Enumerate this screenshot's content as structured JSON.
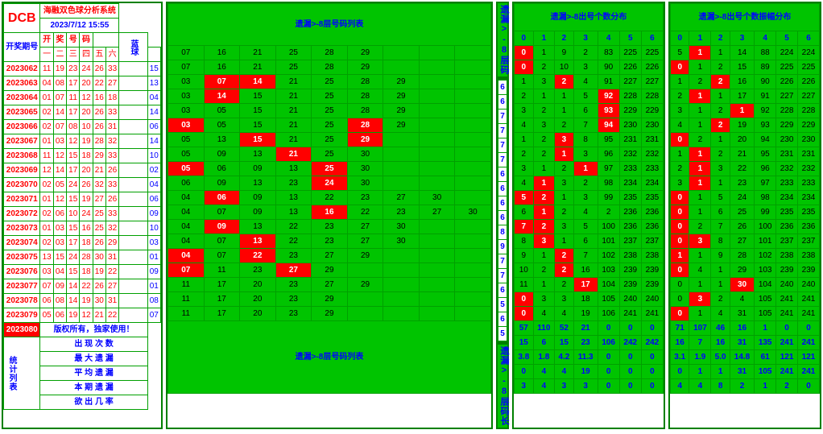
{
  "system_name": "海融双色球分析系统",
  "timestamp": "2023/7/12  15:55",
  "logo": "DCB",
  "col_group_labels": {
    "kai": "开",
    "jiang": "奖",
    "hao": "号",
    "ma": "码",
    "blue": "蓝球",
    "period": "开奖期号"
  },
  "num_cols": [
    "一",
    "二",
    "三",
    "四",
    "五",
    "六"
  ],
  "sections": {
    "center_title": "遗漏>-8层号码列表",
    "right1_title": "遗漏>-8出号个数分布",
    "right2_title": "遗漏>-8出号个数振幅分布",
    "bottom_title": "遗漏>-8层号码列表"
  },
  "col_headers_small": [
    "0",
    "1",
    "2",
    "3",
    "4",
    "5",
    "6"
  ],
  "vertical_labels": {
    "top": "遗漏>-8层码",
    "bottom": "遗漏>-8层码长"
  },
  "periods": [
    "2023062",
    "2023063",
    "2023064",
    "2023065",
    "2023066",
    "2023067",
    "2023068",
    "2023069",
    "2023070",
    "2023071",
    "2023072",
    "2023073",
    "2023074",
    "2023075",
    "2023076",
    "2023077",
    "2023078",
    "2023079",
    "2023080"
  ],
  "red_nums": [
    [
      "11",
      "19",
      "23",
      "24",
      "26",
      "33"
    ],
    [
      "04",
      "08",
      "17",
      "20",
      "22",
      "27"
    ],
    [
      "01",
      "07",
      "11",
      "12",
      "16",
      "18"
    ],
    [
      "02",
      "14",
      "17",
      "20",
      "26",
      "33"
    ],
    [
      "02",
      "07",
      "08",
      "10",
      "26",
      "31"
    ],
    [
      "01",
      "03",
      "12",
      "19",
      "28",
      "32"
    ],
    [
      "11",
      "12",
      "15",
      "18",
      "29",
      "33"
    ],
    [
      "12",
      "14",
      "17",
      "20",
      "21",
      "26"
    ],
    [
      "02",
      "05",
      "24",
      "26",
      "32",
      "33"
    ],
    [
      "01",
      "12",
      "15",
      "19",
      "27",
      "26"
    ],
    [
      "02",
      "06",
      "10",
      "24",
      "25",
      "33"
    ],
    [
      "01",
      "03",
      "15",
      "16",
      "25",
      "32"
    ],
    [
      "02",
      "03",
      "17",
      "18",
      "26",
      "29"
    ],
    [
      "13",
      "15",
      "24",
      "28",
      "30",
      "31"
    ],
    [
      "03",
      "04",
      "15",
      "18",
      "19",
      "22"
    ],
    [
      "07",
      "09",
      "14",
      "22",
      "26",
      "27"
    ],
    [
      "06",
      "08",
      "14",
      "19",
      "30",
      "31"
    ],
    [
      "05",
      "06",
      "19",
      "12",
      "21",
      "22"
    ]
  ],
  "blue_nums": [
    "15",
    "13",
    "04",
    "14",
    "06",
    "14",
    "10",
    "02",
    "04",
    "06",
    "09",
    "10",
    "03",
    "01",
    "09",
    "01",
    "08",
    "07"
  ],
  "copyright": "版权所有，独家使用！",
  "stat_labels": [
    "出 现 次 数",
    "最 大 遗 漏",
    "平 均 遗 漏",
    "本 期 遗 漏",
    "欲 出 几 率"
  ],
  "stat_vertical": "统计列表",
  "center_rows": [
    [
      "07",
      "16",
      "21",
      "25",
      "28",
      "29",
      "",
      "",
      ""
    ],
    [
      "07",
      "16",
      "21",
      "25",
      "28",
      "29",
      "",
      "",
      ""
    ],
    [
      "03",
      "07",
      "14",
      "21",
      "25",
      "28",
      "29",
      "",
      ""
    ],
    [
      "03",
      "14",
      "15",
      "21",
      "25",
      "28",
      "29",
      "",
      ""
    ],
    [
      "03",
      "05",
      "15",
      "21",
      "25",
      "28",
      "29",
      "",
      ""
    ],
    [
      "03",
      "05",
      "15",
      "21",
      "25",
      "28",
      "29",
      "",
      ""
    ],
    [
      "05",
      "13",
      "15",
      "21",
      "25",
      "29",
      "",
      "",
      ""
    ],
    [
      "05",
      "09",
      "13",
      "21",
      "25",
      "30",
      "",
      "",
      ""
    ],
    [
      "05",
      "06",
      "09",
      "13",
      "25",
      "30",
      "",
      "",
      ""
    ],
    [
      "06",
      "09",
      "13",
      "23",
      "24",
      "30",
      "",
      "",
      ""
    ],
    [
      "04",
      "06",
      "09",
      "13",
      "22",
      "23",
      "27",
      "30",
      ""
    ],
    [
      "04",
      "07",
      "09",
      "13",
      "16",
      "22",
      "23",
      "27",
      "30"
    ],
    [
      "04",
      "09",
      "13",
      "22",
      "23",
      "27",
      "30",
      "",
      ""
    ],
    [
      "04",
      "07",
      "13",
      "22",
      "23",
      "27",
      "30",
      "",
      ""
    ],
    [
      "04",
      "07",
      "22",
      "23",
      "27",
      "29",
      "",
      "",
      ""
    ],
    [
      "07",
      "11",
      "23",
      "27",
      "29",
      "",
      "",
      "",
      ""
    ],
    [
      "11",
      "17",
      "20",
      "23",
      "27",
      "29",
      "",
      "",
      ""
    ],
    [
      "11",
      "17",
      "20",
      "23",
      "29",
      "",
      "",
      "",
      ""
    ],
    [
      "11",
      "17",
      "20",
      "23",
      "29",
      "",
      "",
      "",
      ""
    ]
  ],
  "center_red_idx": [
    [],
    [],
    [
      1,
      2
    ],
    [
      1
    ],
    [],
    [
      0,
      5
    ],
    [
      2,
      5
    ],
    [
      3
    ],
    [
      0,
      4
    ],
    [
      4
    ],
    [
      1
    ],
    [
      4
    ],
    [
      1
    ],
    [
      2
    ],
    [
      0,
      2
    ],
    [
      0,
      3
    ],
    [],
    [],
    []
  ],
  "layer_col": [
    "6",
    "6",
    "7",
    "7",
    "7",
    "7",
    "6",
    "6",
    "6",
    "6",
    "8",
    "9",
    "7",
    "7",
    "6",
    "5",
    "6",
    "5"
  ],
  "right1_rows": [
    [
      "0",
      "1",
      "9",
      "2",
      "83",
      "225",
      "225"
    ],
    [
      "0",
      "2",
      "10",
      "3",
      "90",
      "226",
      "226"
    ],
    [
      "1",
      "3",
      "2",
      "4",
      "91",
      "227",
      "227"
    ],
    [
      "2",
      "1",
      "1",
      "5",
      "92",
      "228",
      "228"
    ],
    [
      "3",
      "2",
      "1",
      "6",
      "93",
      "229",
      "229"
    ],
    [
      "4",
      "3",
      "2",
      "7",
      "94",
      "230",
      "230"
    ],
    [
      "1",
      "2",
      "3",
      "8",
      "95",
      "231",
      "231"
    ],
    [
      "2",
      "2",
      "1",
      "3",
      "96",
      "232",
      "232"
    ],
    [
      "3",
      "1",
      "2",
      "1",
      "97",
      "233",
      "233"
    ],
    [
      "4",
      "1",
      "3",
      "2",
      "98",
      "234",
      "234"
    ],
    [
      "5",
      "2",
      "1",
      "3",
      "99",
      "235",
      "235"
    ],
    [
      "6",
      "1",
      "2",
      "4",
      "2",
      "236",
      "236"
    ],
    [
      "7",
      "2",
      "3",
      "5",
      "100",
      "236",
      "236"
    ],
    [
      "8",
      "3",
      "1",
      "6",
      "101",
      "237",
      "237"
    ],
    [
      "9",
      "1",
      "2",
      "7",
      "102",
      "238",
      "238"
    ],
    [
      "10",
      "2",
      "2",
      "16",
      "103",
      "239",
      "239"
    ],
    [
      "11",
      "1",
      "2",
      "17",
      "104",
      "239",
      "239"
    ],
    [
      "0",
      "3",
      "3",
      "18",
      "105",
      "240",
      "240"
    ],
    [
      "0",
      "4",
      "4",
      "19",
      "106",
      "241",
      "241"
    ]
  ],
  "right1_red": [
    [
      0
    ],
    [
      0
    ],
    [
      2
    ],
    [
      4
    ],
    [
      4
    ],
    [
      4
    ],
    [
      2
    ],
    [
      2
    ],
    [
      3
    ],
    [
      1
    ],
    [
      0,
      1
    ],
    [
      1
    ],
    [
      0,
      1
    ],
    [
      1
    ],
    [
      2
    ],
    [
      2
    ],
    [
      3
    ],
    [
      0
    ],
    [
      0
    ]
  ],
  "right2_rows": [
    [
      "5",
      "1",
      "1",
      "14",
      "88",
      "224",
      "224"
    ],
    [
      "0",
      "1",
      "2",
      "15",
      "89",
      "225",
      "225"
    ],
    [
      "1",
      "2",
      "2",
      "16",
      "90",
      "226",
      "226"
    ],
    [
      "2",
      "1",
      "1",
      "17",
      "91",
      "227",
      "227"
    ],
    [
      "3",
      "1",
      "2",
      "1",
      "92",
      "228",
      "228"
    ],
    [
      "4",
      "1",
      "2",
      "19",
      "93",
      "229",
      "229"
    ],
    [
      "0",
      "2",
      "1",
      "20",
      "94",
      "230",
      "230"
    ],
    [
      "1",
      "1",
      "2",
      "21",
      "95",
      "231",
      "231"
    ],
    [
      "2",
      "1",
      "3",
      "22",
      "96",
      "232",
      "232"
    ],
    [
      "3",
      "1",
      "1",
      "23",
      "97",
      "233",
      "233"
    ],
    [
      "0",
      "1",
      "5",
      "24",
      "98",
      "234",
      "234"
    ],
    [
      "0",
      "1",
      "6",
      "25",
      "99",
      "235",
      "235"
    ],
    [
      "0",
      "2",
      "7",
      "26",
      "100",
      "236",
      "236"
    ],
    [
      "0",
      "3",
      "8",
      "27",
      "101",
      "237",
      "237"
    ],
    [
      "1",
      "1",
      "9",
      "28",
      "102",
      "238",
      "238"
    ],
    [
      "0",
      "4",
      "1",
      "29",
      "103",
      "239",
      "239"
    ],
    [
      "0",
      "1",
      "1",
      "30",
      "104",
      "240",
      "240"
    ],
    [
      "0",
      "3",
      "2",
      "4",
      "105",
      "241",
      "241"
    ],
    [
      "0",
      "1",
      "4",
      "31",
      "105",
      "241",
      "241"
    ]
  ],
  "right2_red": [
    [
      1
    ],
    [
      0
    ],
    [
      2
    ],
    [
      1
    ],
    [
      3
    ],
    [
      2
    ],
    [
      0
    ],
    [
      1
    ],
    [
      1
    ],
    [
      1
    ],
    [
      0
    ],
    [
      0
    ],
    [
      0
    ],
    [
      1,
      0
    ],
    [
      0
    ],
    [
      0
    ],
    [
      3
    ],
    [
      1
    ],
    [
      0
    ]
  ],
  "right1_bottom": [
    [
      "57",
      "110",
      "52",
      "21",
      "0",
      "0",
      "0"
    ],
    [
      "15",
      "6",
      "15",
      "23",
      "106",
      "242",
      "242"
    ],
    [
      "3.8",
      "1.8",
      "4.2",
      "11.3",
      "0",
      "0",
      "0"
    ],
    [
      "0",
      "4",
      "4",
      "19",
      "0",
      "0",
      "0"
    ],
    [
      "3",
      "4",
      "3",
      "3",
      "0",
      "0",
      "0"
    ]
  ],
  "right2_bottom": [
    [
      "71",
      "107",
      "46",
      "16",
      "1",
      "0",
      "0"
    ],
    [
      "16",
      "7",
      "16",
      "31",
      "135",
      "241",
      "241"
    ],
    [
      "3.1",
      "1.9",
      "5.0",
      "14.8",
      "61",
      "121",
      "121"
    ],
    [
      "0",
      "1",
      "1",
      "31",
      "105",
      "241",
      "241"
    ],
    [
      "4",
      "4",
      "8",
      "2",
      "1",
      "2",
      "0"
    ]
  ]
}
